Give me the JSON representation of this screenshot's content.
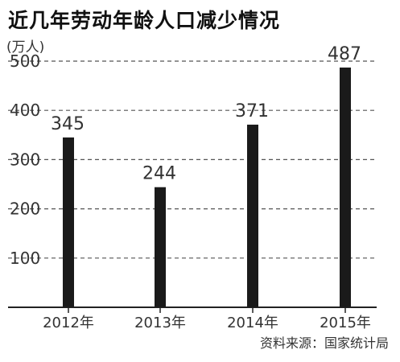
{
  "chart_data": {
    "type": "bar",
    "title": "近几年劳动年龄人口减少情况",
    "unit_label": "(万人)",
    "categories": [
      "2012年",
      "2013年",
      "2014年",
      "2015年"
    ],
    "values": [
      345,
      244,
      371,
      487
    ],
    "ylim": [
      0,
      500
    ],
    "yticks": [
      100,
      200,
      300,
      400,
      500
    ],
    "grid": true,
    "source": "资料来源：国家统计局",
    "bar_color": "#1a1a1a",
    "grid_color": "#555555"
  }
}
